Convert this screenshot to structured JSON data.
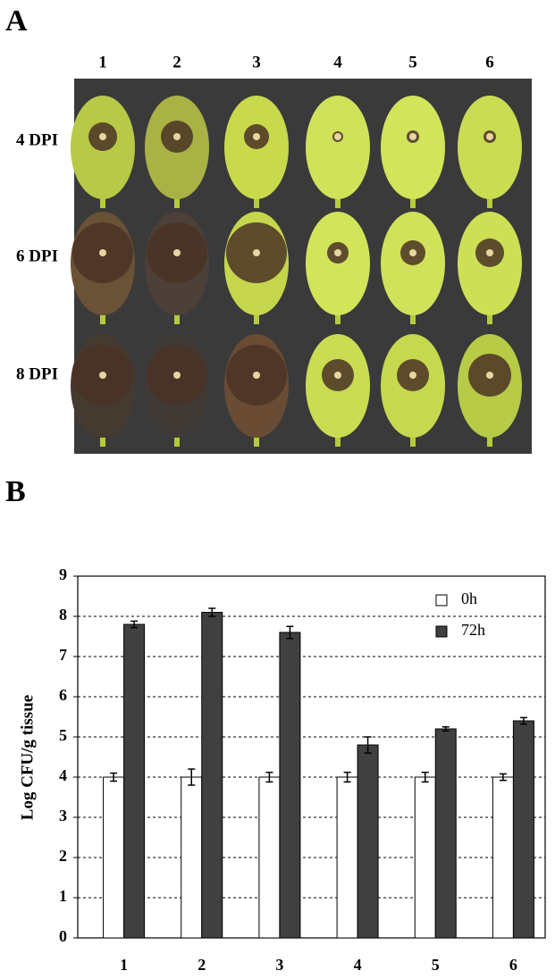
{
  "panel_a": {
    "label": "A",
    "columns": [
      "1",
      "2",
      "3",
      "4",
      "5",
      "6"
    ],
    "rows": [
      "4 DPI",
      "6 DPI",
      "8 DPI"
    ]
  },
  "panel_b_label": "B",
  "chart_data": {
    "type": "bar",
    "y_label": "Log CFU/g tissue",
    "categories": [
      "1",
      "2",
      "3",
      "4",
      "5",
      "6"
    ],
    "series": [
      {
        "name": "0h",
        "color": "#ffffff",
        "values": [
          4,
          4,
          4,
          4,
          4,
          4
        ],
        "errors": [
          0.1,
          0.2,
          0.12,
          0.12,
          0.12,
          0.08
        ]
      },
      {
        "name": "72h",
        "color": "#404040",
        "values": [
          7.8,
          8.1,
          7.6,
          4.8,
          5.2,
          5.4
        ],
        "errors": [
          0.08,
          0.1,
          0.15,
          0.2,
          0.05,
          0.08
        ]
      }
    ],
    "ylim": [
      0,
      9
    ],
    "yticks": [
      0,
      1,
      2,
      3,
      4,
      5,
      6,
      7,
      8,
      9
    ],
    "grid": true,
    "legend": "top-right"
  }
}
